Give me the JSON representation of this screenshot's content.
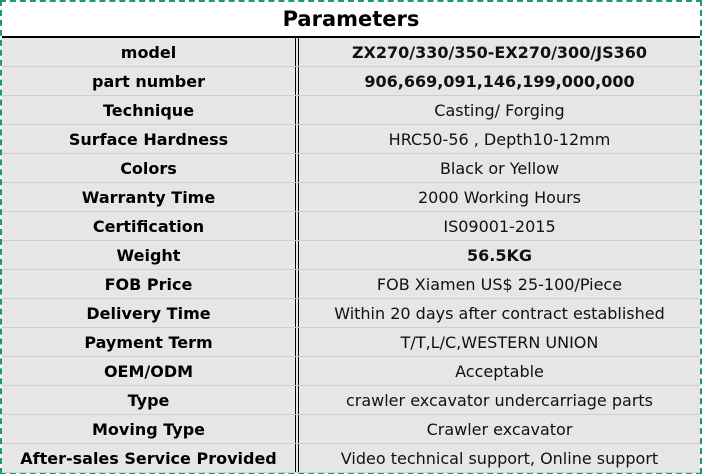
{
  "title": "Parameters",
  "rows": [
    {
      "label": "model",
      "value": "ZX270/330/350-EX270/300/JS360",
      "bold": true
    },
    {
      "label": "part number",
      "value": "906,669,091,146,199,000,000",
      "bold": true
    },
    {
      "label": "Technique",
      "value": "Casting/ Forging",
      "bold": false
    },
    {
      "label": "Surface Hardness",
      "value": "HRC50-56 , Depth10-12mm",
      "bold": false
    },
    {
      "label": "Colors",
      "value": "Black or Yellow",
      "bold": false
    },
    {
      "label": "Warranty Time",
      "value": "2000 Working Hours",
      "bold": false
    },
    {
      "label": "Certification",
      "value": "IS09001-2015",
      "bold": false
    },
    {
      "label": "Weight",
      "value": "56.5KG",
      "bold": true
    },
    {
      "label": "FOB Price",
      "value": "FOB Xiamen US$ 25-100/Piece",
      "bold": false
    },
    {
      "label": "Delivery Time",
      "value": "Within 20 days after contract established",
      "bold": false
    },
    {
      "label": "Payment Term",
      "value": "T/T,L/C,WESTERN UNION",
      "bold": false
    },
    {
      "label": "OEM/ODM",
      "value": "Acceptable",
      "bold": false
    },
    {
      "label": "Type",
      "value": "crawler excavator undercarriage parts",
      "bold": false
    },
    {
      "label": "Moving Type",
      "value": "Crawler excavator",
      "bold": false
    },
    {
      "label": "After-sales Service Provided",
      "value": "Video technical support, Online support",
      "bold": false
    }
  ]
}
